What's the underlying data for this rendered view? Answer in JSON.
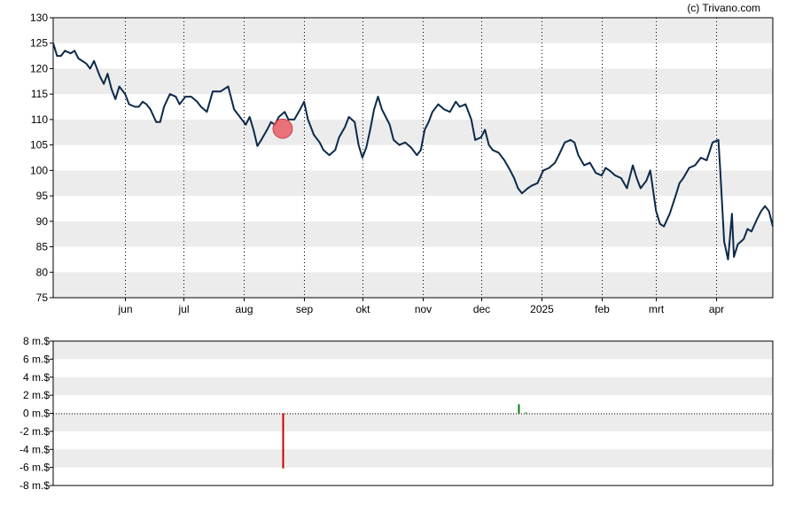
{
  "copyright": "(c) Trivano.com",
  "colors": {
    "price_line": "#0b2a4a",
    "band": "#ececec",
    "marker": "#e8545c",
    "insider_sell": "#cc0000",
    "insider_buy": "#008000"
  },
  "chart_data": [
    {
      "type": "line",
      "title": "",
      "ylim": [
        75,
        130
      ],
      "y_ticks": [
        "75",
        "80",
        "85",
        "90",
        "95",
        "100",
        "105",
        "110",
        "115",
        "120",
        "125",
        "130"
      ],
      "x_tick_labels": [
        "jun",
        "jul",
        "aug",
        "sep",
        "okt",
        "nov",
        "dec",
        "2025",
        "feb",
        "mrt",
        "apr"
      ],
      "x_tick_dates": [
        "2024-06-01",
        "2024-07-01",
        "2024-08-01",
        "2024-09-01",
        "2024-10-01",
        "2024-11-01",
        "2024-12-01",
        "2025-01-01",
        "2025-02-01",
        "2025-03-01",
        "2025-04-01"
      ],
      "x_range": [
        "2024-04-25",
        "2025-04-30"
      ],
      "grid": "alternating horizontal bands, dotted vertical lines at month starts",
      "series": [
        {
          "points": [
            [
              "2024-04-25",
              125.0
            ],
            [
              "2024-04-27",
              122.5
            ],
            [
              "2024-04-29",
              122.5
            ],
            [
              "2024-05-01",
              123.5
            ],
            [
              "2024-05-04",
              123.0
            ],
            [
              "2024-05-06",
              123.5
            ],
            [
              "2024-05-08",
              122.0
            ],
            [
              "2024-05-12",
              121.0
            ],
            [
              "2024-05-14",
              120.0
            ],
            [
              "2024-05-16",
              121.5
            ],
            [
              "2024-05-19",
              118.5
            ],
            [
              "2024-05-21",
              117.0
            ],
            [
              "2024-05-23",
              119.0
            ],
            [
              "2024-05-25",
              116.0
            ],
            [
              "2024-05-27",
              114.0
            ],
            [
              "2024-05-29",
              116.5
            ],
            [
              "2024-06-01",
              115.0
            ],
            [
              "2024-06-03",
              113.0
            ],
            [
              "2024-06-06",
              112.5
            ],
            [
              "2024-06-08",
              112.5
            ],
            [
              "2024-06-10",
              113.5
            ],
            [
              "2024-06-12",
              113.0
            ],
            [
              "2024-06-14",
              112.0
            ],
            [
              "2024-06-17",
              109.5
            ],
            [
              "2024-06-19",
              109.5
            ],
            [
              "2024-06-21",
              112.5
            ],
            [
              "2024-06-24",
              115.0
            ],
            [
              "2024-06-27",
              114.5
            ],
            [
              "2024-06-29",
              113.0
            ],
            [
              "2024-07-02",
              114.5
            ],
            [
              "2024-07-05",
              114.5
            ],
            [
              "2024-07-08",
              113.5
            ],
            [
              "2024-07-10",
              112.5
            ],
            [
              "2024-07-13",
              111.5
            ],
            [
              "2024-07-16",
              115.5
            ],
            [
              "2024-07-20",
              115.5
            ],
            [
              "2024-07-24",
              116.5
            ],
            [
              "2024-07-27",
              112.0
            ],
            [
              "2024-07-30",
              110.5
            ],
            [
              "2024-08-02",
              109.0
            ],
            [
              "2024-08-04",
              110.5
            ],
            [
              "2024-08-06",
              108.0
            ],
            [
              "2024-08-08",
              104.8
            ],
            [
              "2024-08-10",
              106.0
            ],
            [
              "2024-08-13",
              108.0
            ],
            [
              "2024-08-15",
              109.5
            ],
            [
              "2024-08-17",
              109.0
            ],
            [
              "2024-08-19",
              110.5
            ],
            [
              "2024-08-22",
              111.5
            ],
            [
              "2024-08-24",
              110.0
            ],
            [
              "2024-08-27",
              110.0
            ],
            [
              "2024-08-30",
              112.0
            ],
            [
              "2024-09-01",
              113.5
            ],
            [
              "2024-09-03",
              110.0
            ],
            [
              "2024-09-06",
              107.0
            ],
            [
              "2024-09-09",
              105.5
            ],
            [
              "2024-09-11",
              104.0
            ],
            [
              "2024-09-14",
              103.0
            ],
            [
              "2024-09-17",
              104.0
            ],
            [
              "2024-09-19",
              106.5
            ],
            [
              "2024-09-22",
              108.5
            ],
            [
              "2024-09-24",
              110.5
            ],
            [
              "2024-09-27",
              109.5
            ],
            [
              "2024-09-29",
              105.0
            ],
            [
              "2024-10-01",
              102.5
            ],
            [
              "2024-10-03",
              104.5
            ],
            [
              "2024-10-05",
              108.0
            ],
            [
              "2024-10-07",
              112.0
            ],
            [
              "2024-10-09",
              114.5
            ],
            [
              "2024-10-11",
              112.0
            ],
            [
              "2024-10-13",
              110.5
            ],
            [
              "2024-10-15",
              109.0
            ],
            [
              "2024-10-17",
              106.0
            ],
            [
              "2024-10-20",
              105.0
            ],
            [
              "2024-10-23",
              105.5
            ],
            [
              "2024-10-26",
              104.5
            ],
            [
              "2024-10-29",
              103.0
            ],
            [
              "2024-10-31",
              104.0
            ],
            [
              "2024-11-02",
              108.0
            ],
            [
              "2024-11-04",
              109.5
            ],
            [
              "2024-11-06",
              111.5
            ],
            [
              "2024-11-09",
              113.0
            ],
            [
              "2024-11-12",
              112.0
            ],
            [
              "2024-11-15",
              111.5
            ],
            [
              "2024-11-18",
              113.5
            ],
            [
              "2024-11-20",
              112.5
            ],
            [
              "2024-11-23",
              113.0
            ],
            [
              "2024-11-26",
              110.0
            ],
            [
              "2024-11-28",
              106.0
            ],
            [
              "2024-12-01",
              106.5
            ],
            [
              "2024-12-03",
              108.0
            ],
            [
              "2024-12-05",
              105.0
            ],
            [
              "2024-12-07",
              104.0
            ],
            [
              "2024-12-10",
              103.5
            ],
            [
              "2024-12-13",
              102.0
            ],
            [
              "2024-12-16",
              100.0
            ],
            [
              "2024-12-18",
              98.5
            ],
            [
              "2024-12-20",
              96.5
            ],
            [
              "2024-12-22",
              95.5
            ],
            [
              "2024-12-25",
              96.5
            ],
            [
              "2024-12-27",
              97.0
            ],
            [
              "2024-12-30",
              97.5
            ],
            [
              "2025-01-02",
              100.0
            ],
            [
              "2025-01-05",
              100.5
            ],
            [
              "2025-01-08",
              101.5
            ],
            [
              "2025-01-10",
              103.0
            ],
            [
              "2025-01-13",
              105.5
            ],
            [
              "2025-01-16",
              106.0
            ],
            [
              "2025-01-18",
              105.5
            ],
            [
              "2025-01-20",
              103.0
            ],
            [
              "2025-01-23",
              101.0
            ],
            [
              "2025-01-26",
              101.5
            ],
            [
              "2025-01-29",
              99.5
            ],
            [
              "2025-02-01",
              99.0
            ],
            [
              "2025-02-03",
              100.5
            ],
            [
              "2025-02-05",
              100.0
            ],
            [
              "2025-02-08",
              99.0
            ],
            [
              "2025-02-11",
              98.5
            ],
            [
              "2025-02-14",
              96.5
            ],
            [
              "2025-02-17",
              101.0
            ],
            [
              "2025-02-19",
              98.5
            ],
            [
              "2025-02-21",
              96.5
            ],
            [
              "2025-02-24",
              98.0
            ],
            [
              "2025-02-26",
              100.0
            ],
            [
              "2025-03-01",
              92.0
            ],
            [
              "2025-03-03",
              89.5
            ],
            [
              "2025-03-05",
              89.0
            ],
            [
              "2025-03-08",
              91.5
            ],
            [
              "2025-03-11",
              95.0
            ],
            [
              "2025-03-13",
              97.5
            ],
            [
              "2025-03-15",
              98.5
            ],
            [
              "2025-03-18",
              100.5
            ],
            [
              "2025-03-21",
              101.0
            ],
            [
              "2025-03-24",
              102.5
            ],
            [
              "2025-03-27",
              102.0
            ],
            [
              "2025-03-30",
              105.5
            ],
            [
              "2025-04-02",
              106.0
            ],
            [
              "2025-04-03",
              100.0
            ],
            [
              "2025-04-05",
              86.0
            ],
            [
              "2025-04-07",
              82.5
            ],
            [
              "2025-04-09",
              91.5
            ],
            [
              "2025-04-10",
              83.0
            ],
            [
              "2025-04-12",
              85.5
            ],
            [
              "2025-04-15",
              86.5
            ],
            [
              "2025-04-17",
              88.5
            ],
            [
              "2025-04-19",
              88.0
            ],
            [
              "2025-04-22",
              90.5
            ],
            [
              "2025-04-24",
              92.0
            ],
            [
              "2025-04-26",
              93.0
            ],
            [
              "2025-04-28",
              92.0
            ],
            [
              "2025-04-30",
              89.0
            ]
          ]
        }
      ],
      "annotations": [
        {
          "type": "marker",
          "date": "2024-08-21",
          "y": 108.2
        }
      ]
    },
    {
      "type": "bar",
      "title": "",
      "ylim": [
        -8,
        8
      ],
      "y_ticks": [
        "-8 m.$",
        "-6 m.$",
        "-4 m.$",
        "-2 m.$",
        "0 m.$",
        "2 m.$",
        "4 m.$",
        "6 m.$",
        "8 m.$"
      ],
      "x_range": [
        "2024-04-25",
        "2025-04-30"
      ],
      "grid": "alternating horizontal bands",
      "bars": [
        {
          "date": "2024-08-21",
          "value": -6.1,
          "kind": "sell"
        },
        {
          "date": "2024-12-20",
          "value": 1.0,
          "kind": "buy"
        },
        {
          "date": "2024-12-24",
          "value": 0.1,
          "kind": "buy"
        }
      ]
    }
  ]
}
